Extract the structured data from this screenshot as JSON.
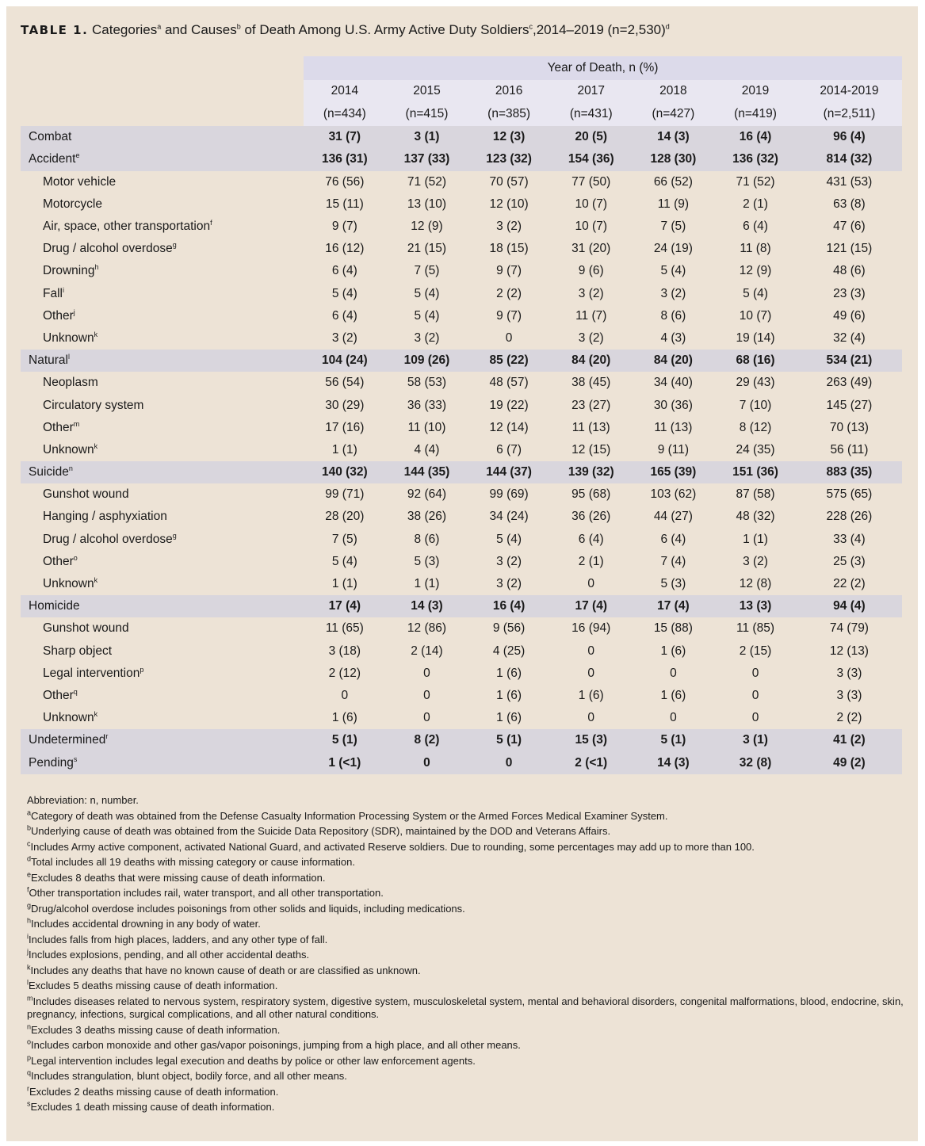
{
  "title": {
    "label": "TABLE 1.",
    "text": "Categories",
    "s1": "a",
    "t2": " and Causes",
    "s2": "b",
    "t3": " of Death Among U.S. Army Active Duty Soldiers",
    "s3": "c",
    "t4": ",2014–2019 (n=2,530)",
    "s4": "d"
  },
  "header": {
    "group": "Year of Death, n (%)",
    "years": [
      "2014",
      "2015",
      "2016",
      "2017",
      "2018",
      "2019",
      "2014-2019"
    ],
    "ns": [
      "(n=434)",
      "(n=415)",
      "(n=385)",
      "(n=431)",
      "(n=427)",
      "(n=419)",
      "(n=2,511)"
    ]
  },
  "rows": [
    {
      "type": "cat",
      "label": "Combat",
      "sup": "",
      "values": [
        "31 (7)",
        "3 (1)",
        "12 (3)",
        "20 (5)",
        "14 (3)",
        "16 (4)",
        "96 (4)"
      ]
    },
    {
      "type": "cat",
      "label": "Accident",
      "sup": "e",
      "values": [
        "136 (31)",
        "137 (33)",
        "123 (32)",
        "154 (36)",
        "128 (30)",
        "136 (32)",
        "814 (32)"
      ]
    },
    {
      "type": "sub",
      "label": "Motor vehicle",
      "sup": "",
      "values": [
        "76 (56)",
        "71 (52)",
        "70 (57)",
        "77 (50)",
        "66 (52)",
        "71 (52)",
        "431 (53)"
      ]
    },
    {
      "type": "sub",
      "label": "Motorcycle",
      "sup": "",
      "values": [
        "15 (11)",
        "13 (10)",
        "12 (10)",
        "10 (7)",
        "11 (9)",
        "2 (1)",
        "63 (8)"
      ]
    },
    {
      "type": "sub",
      "label": "Air, space, other transportation",
      "sup": "f",
      "values": [
        "9 (7)",
        "12 (9)",
        "3 (2)",
        "10 (7)",
        "7 (5)",
        "6 (4)",
        "47 (6)"
      ]
    },
    {
      "type": "sub",
      "label": "Drug / alcohol overdose",
      "sup": "g",
      "values": [
        "16 (12)",
        "21 (15)",
        "18 (15)",
        "31 (20)",
        "24 (19)",
        "11 (8)",
        "121 (15)"
      ]
    },
    {
      "type": "sub",
      "label": "Drowning",
      "sup": "h",
      "values": [
        "6 (4)",
        "7 (5)",
        "9 (7)",
        "9 (6)",
        "5 (4)",
        "12 (9)",
        "48 (6)"
      ]
    },
    {
      "type": "sub",
      "label": "Fall",
      "sup": "i",
      "values": [
        "5 (4)",
        "5 (4)",
        "2 (2)",
        "3 (2)",
        "3 (2)",
        "5 (4)",
        "23 (3)"
      ]
    },
    {
      "type": "sub",
      "label": "Other",
      "sup": "j",
      "values": [
        "6 (4)",
        "5 (4)",
        "9 (7)",
        "11 (7)",
        "8 (6)",
        "10 (7)",
        "49 (6)"
      ]
    },
    {
      "type": "sub",
      "label": "Unknown",
      "sup": "k",
      "values": [
        "3 (2)",
        "3 (2)",
        "0",
        "3 (2)",
        "4 (3)",
        "19 (14)",
        "32 (4)"
      ]
    },
    {
      "type": "cat",
      "label": "Natural",
      "sup": "l",
      "values": [
        "104 (24)",
        "109 (26)",
        "85 (22)",
        "84 (20)",
        "84 (20)",
        "68 (16)",
        "534 (21)"
      ]
    },
    {
      "type": "sub",
      "label": "Neoplasm",
      "sup": "",
      "values": [
        "56 (54)",
        "58 (53)",
        "48 (57)",
        "38 (45)",
        "34 (40)",
        "29 (43)",
        "263 (49)"
      ]
    },
    {
      "type": "sub",
      "label": "Circulatory system",
      "sup": "",
      "values": [
        "30 (29)",
        "36 (33)",
        "19 (22)",
        "23 (27)",
        "30 (36)",
        "7 (10)",
        "145 (27)"
      ]
    },
    {
      "type": "sub",
      "label": "Other",
      "sup": "m",
      "values": [
        "17 (16)",
        "11 (10)",
        "12 (14)",
        "11 (13)",
        "11 (13)",
        "8 (12)",
        "70 (13)"
      ]
    },
    {
      "type": "sub",
      "label": "Unknown",
      "sup": "k",
      "values": [
        "1 (1)",
        "4 (4)",
        "6 (7)",
        "12 (15)",
        "9 (11)",
        "24 (35)",
        "56 (11)"
      ]
    },
    {
      "type": "cat",
      "label": "Suicide",
      "sup": "n",
      "values": [
        "140 (32)",
        "144 (35)",
        "144 (37)",
        "139 (32)",
        "165 (39)",
        "151 (36)",
        "883 (35)"
      ]
    },
    {
      "type": "sub",
      "label": "Gunshot wound",
      "sup": "",
      "values": [
        "99 (71)",
        "92 (64)",
        "99 (69)",
        "95 (68)",
        "103 (62)",
        "87 (58)",
        "575 (65)"
      ]
    },
    {
      "type": "sub",
      "label": "Hanging / asphyxiation",
      "sup": "",
      "values": [
        "28 (20)",
        "38 (26)",
        "34 (24)",
        "36 (26)",
        "44 (27)",
        "48 (32)",
        "228 (26)"
      ]
    },
    {
      "type": "sub",
      "label": "Drug / alcohol overdose",
      "sup": "g",
      "values": [
        "7 (5)",
        "8 (6)",
        "5 (4)",
        "6 (4)",
        "6 (4)",
        "1 (1)",
        "33 (4)"
      ]
    },
    {
      "type": "sub",
      "label": "Other",
      "sup": "o",
      "values": [
        "5 (4)",
        "5 (3)",
        "3 (2)",
        "2 (1)",
        "7 (4)",
        "3 (2)",
        "25 (3)"
      ]
    },
    {
      "type": "sub",
      "label": "Unknown",
      "sup": "k",
      "values": [
        "1 (1)",
        "1 (1)",
        "3 (2)",
        "0",
        "5 (3)",
        "12 (8)",
        "22 (2)"
      ]
    },
    {
      "type": "cat",
      "label": "Homicide",
      "sup": "",
      "values": [
        "17 (4)",
        "14 (3)",
        "16 (4)",
        "17 (4)",
        "17 (4)",
        "13 (3)",
        "94 (4)"
      ]
    },
    {
      "type": "sub",
      "label": "Gunshot wound",
      "sup": "",
      "values": [
        "11 (65)",
        "12 (86)",
        "9 (56)",
        "16 (94)",
        "15 (88)",
        "11 (85)",
        "74 (79)"
      ]
    },
    {
      "type": "sub",
      "label": "Sharp object",
      "sup": "",
      "values": [
        "3 (18)",
        "2 (14)",
        "4 (25)",
        "0",
        "1 (6)",
        "2 (15)",
        "12 (13)"
      ]
    },
    {
      "type": "sub",
      "label": "Legal intervention",
      "sup": "p",
      "values": [
        "2 (12)",
        "0",
        "1 (6)",
        "0",
        "0",
        "0",
        "3 (3)"
      ]
    },
    {
      "type": "sub",
      "label": "Other",
      "sup": "q",
      "values": [
        "0",
        "0",
        "1 (6)",
        "1 (6)",
        "1 (6)",
        "0",
        "3 (3)"
      ]
    },
    {
      "type": "sub",
      "label": "Unknown",
      "sup": "k",
      "values": [
        "1 (6)",
        "0",
        "1 (6)",
        "0",
        "0",
        "0",
        "2 (2)"
      ]
    },
    {
      "type": "cat",
      "label": "Undetermined",
      "sup": "r",
      "values": [
        "5 (1)",
        "8 (2)",
        "5 (1)",
        "15 (3)",
        "5 (1)",
        "3 (1)",
        "41 (2)"
      ]
    },
    {
      "type": "cat",
      "label": "Pending",
      "sup": "s",
      "values": [
        "1 (<1)",
        "0",
        "0",
        "2 (<1)",
        "14 (3)",
        "32 (8)",
        "49 (2)"
      ]
    }
  ],
  "notes": [
    {
      "sup": "",
      "text": "Abbreviation: n, number."
    },
    {
      "sup": "a",
      "text": "Category of death was obtained from the Defense Casualty Information Processing System or the Armed Forces Medical Examiner System."
    },
    {
      "sup": "b",
      "text": "Underlying cause of death was obtained from the Suicide Data Repository (SDR), maintained by the DOD and Veterans Affairs."
    },
    {
      "sup": "c",
      "text": "Includes Army active component, activated National Guard, and activated Reserve soldiers. Due to rounding, some percentages may add up to more than 100."
    },
    {
      "sup": "d",
      "text": "Total includes all 19 deaths with missing category or cause information."
    },
    {
      "sup": "e",
      "text": "Excludes 8 deaths that were missing cause of death information."
    },
    {
      "sup": "f",
      "text": "Other transportation includes rail, water transport, and all other transportation."
    },
    {
      "sup": "g",
      "text": "Drug/alcohol overdose includes poisonings from other solids and liquids, including medications."
    },
    {
      "sup": "h",
      "text": "Includes accidental drowning in any body of water."
    },
    {
      "sup": "i",
      "text": "Includes falls from high places, ladders, and any other type of fall."
    },
    {
      "sup": "j",
      "text": "Includes explosions, pending, and all other accidental deaths."
    },
    {
      "sup": "k",
      "text": "Includes any deaths that have no known cause of death or are classified as unknown."
    },
    {
      "sup": "l",
      "text": "Excludes 5 deaths missing cause of death information."
    },
    {
      "sup": "m",
      "text": "Includes diseases related to nervous system, respiratory system, digestive system, musculoskeletal system, mental and behavioral disorders, congenital malformations, blood, endocrine, skin, pregnancy, infections, surgical complications, and all other natural conditions."
    },
    {
      "sup": "n",
      "text": "Excludes 3 deaths missing cause of death information."
    },
    {
      "sup": "o",
      "text": "Includes carbon monoxide and other gas/vapor poisonings, jumping from a high place, and all other means."
    },
    {
      "sup": "p",
      "text": "Legal intervention includes legal execution and deaths by police or other law enforcement agents."
    },
    {
      "sup": "q",
      "text": "Includes strangulation, blunt object, bodily force, and all other means."
    },
    {
      "sup": "r",
      "text": "Excludes 2 deaths missing cause of death information."
    },
    {
      "sup": "s",
      "text": "Excludes 1 death missing cause of death information."
    }
  ]
}
